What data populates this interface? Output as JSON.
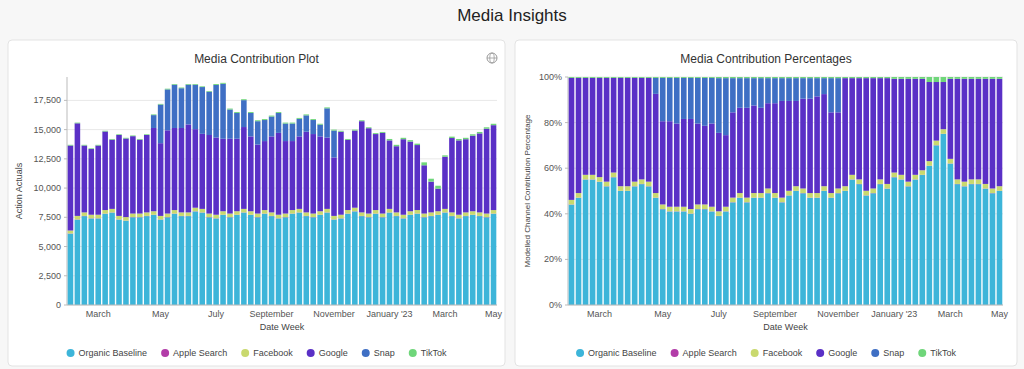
{
  "title": "Media Insights",
  "chart_data": [
    {
      "type": "bar",
      "title": "Media Contribution Plot",
      "xlabel": "Date Week",
      "ylabel": "Action Actuals",
      "stacked": true,
      "grid": true,
      "legend": "bottom",
      "categories": [
        null,
        null,
        null,
        null,
        "March",
        null,
        null,
        null,
        null,
        null,
        null,
        null,
        null,
        "May",
        null,
        null,
        null,
        null,
        null,
        null,
        null,
        "July",
        null,
        null,
        null,
        null,
        null,
        null,
        null,
        "September",
        null,
        null,
        null,
        null,
        null,
        null,
        null,
        null,
        "November",
        null,
        null,
        null,
        null,
        null,
        null,
        null,
        "January '23",
        null,
        null,
        null,
        null,
        null,
        null,
        null,
        "March",
        null,
        null,
        null,
        null,
        null,
        null,
        "May"
      ],
      "ylim": [
        0,
        19500
      ],
      "yticks": [
        0,
        {
          "value": 2500,
          "label": "2,500"
        },
        {
          "value": 5000,
          "label": "5,000"
        },
        {
          "value": 7500,
          "label": "7,500"
        },
        {
          "value": 10000,
          "label": "10,000"
        },
        {
          "value": 12500,
          "label": "12,500"
        },
        {
          "value": 15000,
          "label": "15,000"
        },
        {
          "value": 17500,
          "label": "17,500"
        }
      ],
      "series": [
        {
          "name": "Organic Baseline",
          "color": "#3db5d9",
          "values": [
            6100,
            7300,
            7600,
            7400,
            7400,
            7800,
            7900,
            7300,
            7200,
            7500,
            7500,
            7600,
            7700,
            7300,
            7500,
            7800,
            7600,
            7600,
            8000,
            7900,
            7500,
            7400,
            7700,
            7500,
            7700,
            7900,
            7700,
            7500,
            7800,
            7600,
            7400,
            7500,
            7800,
            7900,
            7600,
            7500,
            7700,
            7900,
            7300,
            7400,
            7800,
            8000,
            7600,
            7500,
            7800,
            7500,
            7900,
            7600,
            7400,
            7700,
            7800,
            7500,
            7600,
            7700,
            7900,
            7600,
            7400,
            7600,
            7700,
            7600,
            7500,
            7800
          ]
        },
        {
          "name": "Apple Search",
          "color": "#b23ca8",
          "values": [
            20,
            20,
            20,
            20,
            20,
            20,
            20,
            20,
            20,
            20,
            20,
            20,
            20,
            20,
            20,
            20,
            20,
            20,
            20,
            20,
            20,
            20,
            20,
            20,
            20,
            20,
            20,
            20,
            20,
            20,
            20,
            20,
            20,
            20,
            20,
            20,
            20,
            20,
            20,
            20,
            20,
            20,
            20,
            20,
            20,
            20,
            20,
            20,
            20,
            20,
            20,
            20,
            20,
            20,
            20,
            20,
            20,
            20,
            20,
            20,
            20,
            20
          ]
        },
        {
          "name": "Facebook",
          "color": "#c9d96e",
          "values": [
            250,
            300,
            300,
            300,
            300,
            300,
            300,
            300,
            300,
            300,
            300,
            300,
            300,
            300,
            300,
            300,
            300,
            300,
            300,
            300,
            300,
            300,
            300,
            300,
            300,
            300,
            300,
            300,
            300,
            300,
            300,
            300,
            300,
            300,
            300,
            300,
            300,
            300,
            300,
            300,
            300,
            300,
            300,
            300,
            300,
            300,
            300,
            300,
            300,
            300,
            300,
            300,
            300,
            300,
            300,
            300,
            300,
            300,
            300,
            300,
            300,
            300
          ]
        },
        {
          "name": "Google",
          "color": "#5a30c6",
          "values": [
            7270,
            7920,
            5720,
            5620,
            5920,
            6720,
            5920,
            6920,
            6720,
            6620,
            6320,
            6620,
            7120,
            6220,
            7120,
            7020,
            7220,
            7520,
            6720,
            6420,
            6720,
            6600,
            6200,
            6400,
            6200,
            7000,
            6400,
            5900,
            5900,
            6500,
            7000,
            6200,
            5900,
            6200,
            6900,
            6800,
            6400,
            6100,
            5000,
            7100,
            6000,
            6600,
            7800,
            7300,
            6500,
            6900,
            5860,
            5660,
            6460,
            5960,
            5560,
            4130,
            2630,
            1930,
            4460,
            6360,
            6360,
            6260,
            6460,
            6760,
            7260,
            7260
          ]
        },
        {
          "name": "Snap",
          "color": "#3f6fc4",
          "values": [
            0,
            0,
            0,
            0,
            0,
            0,
            0,
            0,
            0,
            0,
            0,
            0,
            1100,
            3300,
            3500,
            3700,
            3400,
            3400,
            3800,
            4000,
            3700,
            4500,
            4700,
            2500,
            2200,
            2300,
            2000,
            2000,
            1800,
            1700,
            1700,
            1500,
            1500,
            1500,
            1400,
            1200,
            1000,
            2500,
            2300,
            0,
            0,
            0,
            0,
            0,
            0,
            0,
            0,
            0,
            0,
            0,
            0,
            0,
            0,
            0,
            0,
            0,
            0,
            0,
            0,
            0,
            0,
            0
          ]
        },
        {
          "name": "TikTok",
          "color": "#6fd67a",
          "values": [
            60,
            60,
            60,
            60,
            60,
            60,
            60,
            60,
            60,
            60,
            60,
            60,
            60,
            60,
            60,
            60,
            60,
            60,
            60,
            60,
            60,
            80,
            80,
            80,
            80,
            80,
            80,
            80,
            80,
            80,
            80,
            80,
            80,
            80,
            80,
            80,
            80,
            80,
            80,
            80,
            80,
            80,
            80,
            80,
            80,
            80,
            120,
            120,
            120,
            120,
            120,
            250,
            250,
            250,
            120,
            120,
            120,
            120,
            120,
            120,
            120,
            120
          ]
        }
      ]
    },
    {
      "type": "bar",
      "title": "Media Contribution Percentages",
      "xlabel": "Date Week",
      "ylabel": "Modelled Channel Contribution Percentage",
      "stacked": true,
      "grid": true,
      "legend": "bottom",
      "categories": [
        null,
        null,
        null,
        null,
        "March",
        null,
        null,
        null,
        null,
        null,
        null,
        null,
        null,
        "May",
        null,
        null,
        null,
        null,
        null,
        null,
        null,
        "July",
        null,
        null,
        null,
        null,
        null,
        null,
        null,
        "September",
        null,
        null,
        null,
        null,
        null,
        null,
        null,
        null,
        "November",
        null,
        null,
        null,
        null,
        null,
        null,
        null,
        "January '23",
        null,
        null,
        null,
        null,
        null,
        null,
        null,
        "March",
        null,
        null,
        null,
        null,
        null,
        null,
        "May"
      ],
      "ylim": [
        0,
        100
      ],
      "yticks": [
        {
          "value": 0,
          "label": "0%"
        },
        {
          "value": 20,
          "label": "20%"
        },
        {
          "value": 40,
          "label": "40%"
        },
        {
          "value": 60,
          "label": "60%"
        },
        {
          "value": 80,
          "label": "80%"
        },
        {
          "value": 100,
          "label": "100%"
        }
      ],
      "series": [
        {
          "name": "Organic Baseline",
          "color": "#3db5d9",
          "values": [
            44,
            47,
            55,
            55,
            54,
            52,
            56,
            50,
            50,
            52,
            53,
            52,
            47,
            42,
            41,
            41,
            41,
            40,
            42,
            42,
            41,
            39,
            41,
            45,
            47,
            45,
            47,
            47,
            49,
            47,
            45,
            48,
            50,
            49,
            47,
            47,
            50,
            47,
            49,
            50,
            55,
            53,
            48,
            49,
            53,
            51,
            56,
            55,
            52,
            55,
            57,
            61,
            70,
            75,
            62,
            53,
            52,
            53,
            53,
            51,
            49,
            50
          ]
        },
        {
          "name": "Apple Search",
          "color": "#b23ca8",
          "values": [
            0.1,
            0.1,
            0.1,
            0.1,
            0.1,
            0.1,
            0.1,
            0.1,
            0.1,
            0.1,
            0.1,
            0.1,
            0.1,
            0.1,
            0.1,
            0.1,
            0.1,
            0.1,
            0.1,
            0.1,
            0.1,
            0.1,
            0.1,
            0.1,
            0.1,
            0.1,
            0.1,
            0.1,
            0.1,
            0.1,
            0.1,
            0.1,
            0.1,
            0.1,
            0.1,
            0.1,
            0.1,
            0.1,
            0.1,
            0.1,
            0.1,
            0.1,
            0.1,
            0.1,
            0.1,
            0.1,
            0.1,
            0.1,
            0.1,
            0.1,
            0.1,
            0.1,
            0.1,
            0.1,
            0.1,
            0.1,
            0.1,
            0.1,
            0.1,
            0.1,
            0.1,
            0.1
          ]
        },
        {
          "name": "Facebook",
          "color": "#c9d96e",
          "values": [
            2,
            2,
            2,
            2,
            2,
            2,
            2,
            2,
            2,
            2,
            2,
            2,
            2,
            2,
            2,
            2,
            2,
            2,
            2,
            2,
            2,
            2,
            2,
            2,
            2,
            2,
            2,
            2,
            2,
            2,
            2,
            2,
            2,
            2,
            2,
            2,
            2,
            2,
            2,
            2,
            2,
            2,
            2,
            2,
            2,
            2,
            2,
            2,
            2,
            2,
            2,
            2,
            2,
            2,
            2,
            2,
            2,
            2,
            2,
            2,
            2,
            2
          ]
        },
        {
          "name": "Google",
          "color": "#5a30c6",
          "values": [
            53.5,
            50.5,
            42.5,
            42.5,
            43.5,
            45.5,
            41.5,
            47.5,
            47.5,
            45.5,
            44.5,
            45.5,
            43.5,
            36.5,
            37.5,
            36.5,
            38.5,
            39.5,
            35.5,
            34.5,
            36.5,
            34.4,
            31.4,
            37.4,
            37.4,
            39.4,
            38.4,
            37.4,
            37.4,
            39.4,
            42.4,
            39.4,
            37.4,
            39.4,
            41.4,
            42.4,
            40.4,
            35.4,
            33.4,
            47.4,
            42.4,
            44.4,
            49.4,
            48.4,
            44.4,
            46.4,
            41.1,
            42.1,
            45.1,
            42.1,
            40.1,
            34.7,
            25.7,
            20.7,
            35.1,
            44.1,
            45.1,
            44.1,
            44.1,
            46.1,
            48.1,
            47.1
          ]
        },
        {
          "name": "Snap",
          "color": "#3f6fc4",
          "values": [
            0,
            0,
            0,
            0,
            0,
            0,
            0,
            0,
            0,
            0,
            0,
            0,
            7,
            19,
            19,
            20,
            18,
            18,
            20,
            21,
            20,
            24,
            25,
            15,
            13,
            13,
            12,
            13,
            11,
            11,
            10,
            10,
            10,
            9,
            9,
            8,
            7,
            15,
            15,
            0,
            0,
            0,
            0,
            0,
            0,
            0,
            0,
            0,
            0,
            0,
            0,
            0,
            0,
            0,
            0,
            0,
            0,
            0,
            0,
            0,
            0,
            0
          ]
        },
        {
          "name": "TikTok",
          "color": "#6fd67a",
          "values": [
            0.4,
            0.4,
            0.4,
            0.4,
            0.4,
            0.4,
            0.4,
            0.4,
            0.4,
            0.4,
            0.4,
            0.4,
            0.4,
            0.4,
            0.4,
            0.4,
            0.4,
            0.4,
            0.4,
            0.4,
            0.4,
            0.5,
            0.5,
            0.5,
            0.5,
            0.5,
            0.5,
            0.5,
            0.5,
            0.5,
            0.5,
            0.5,
            0.5,
            0.5,
            0.5,
            0.5,
            0.5,
            0.5,
            0.5,
            0.5,
            0.5,
            0.5,
            0.5,
            0.5,
            0.5,
            0.5,
            0.8,
            0.8,
            0.8,
            0.8,
            0.8,
            2.2,
            2.2,
            2.2,
            0.8,
            0.8,
            0.8,
            0.8,
            0.8,
            0.8,
            0.8,
            0.8
          ]
        }
      ]
    }
  ]
}
